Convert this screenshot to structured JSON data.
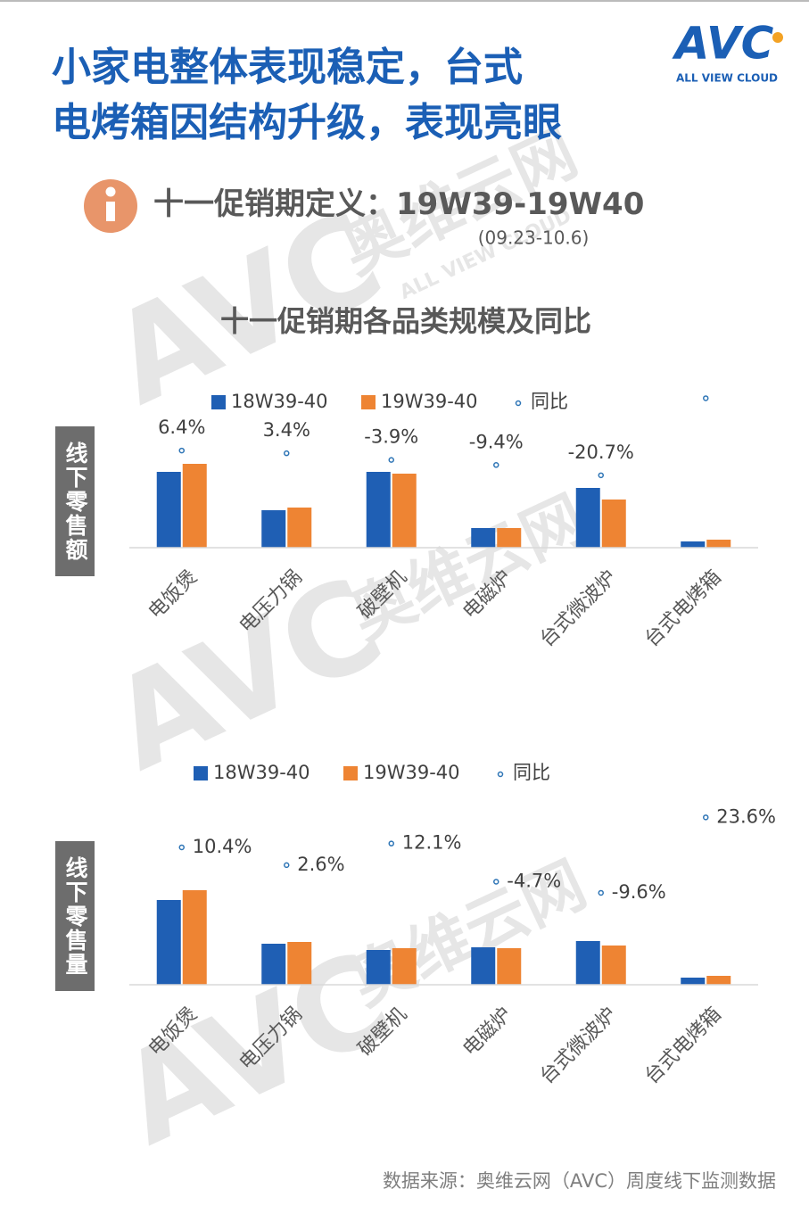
{
  "header": {
    "title_lines": [
      "小家电整体表现稳定，台式",
      "电烤箱因结构升级，表现亮眼"
    ],
    "logo": "AVC",
    "logo_tagline": "ALL VIEW CLOUD"
  },
  "info": {
    "label": "十一促销期定义：",
    "period": "19W39-19W40",
    "dates": "(09.23-10.6)"
  },
  "section_title": "十一促销期各品类规模及同比",
  "watermark": {
    "brand": "AVC",
    "name": "奥维云网",
    "tagline": "ALL VIEW CLOUD"
  },
  "chart_data": [
    {
      "type": "bar",
      "ylabel": "线下零售额",
      "categories": [
        "电饭煲",
        "电压力锅",
        "破壁机",
        "电磁炉",
        "台式微波炉",
        "台式电烤箱"
      ],
      "ylim": [
        0,
        174
      ],
      "y2lim": [
        -100,
        70
      ],
      "label_position": "above",
      "series": [
        {
          "name": "18W39-40",
          "color": "#1f5fb4",
          "values": [
            85,
            42,
            85,
            22,
            67,
            7
          ]
        },
        {
          "name": "19W39-40",
          "color": "#ee8433",
          "values": [
            94,
            45,
            83,
            22,
            54,
            9
          ]
        },
        {
          "name": "同比",
          "type": "scatter",
          "axis": "y2",
          "color": "#2e75b6",
          "values": [
            6.4,
            3.4,
            -3.9,
            -9.4,
            -20.7,
            63.7
          ],
          "value_labels": [
            "6.4%",
            "3.4%",
            "-3.9%",
            "-9.4%",
            "-20.7%",
            null
          ]
        }
      ]
    },
    {
      "type": "bar",
      "ylabel": "线下零售量",
      "categories": [
        "电饭煲",
        "电压力锅",
        "破壁机",
        "电磁炉",
        "台式微波炉",
        "台式电烤箱"
      ],
      "ylim": [
        0,
        204
      ],
      "y2lim": [
        -50,
        30
      ],
      "label_position": "right",
      "series": [
        {
          "name": "18W39-40",
          "color": "#1f5fb4",
          "values": [
            95,
            46,
            39,
            42,
            49,
            8
          ]
        },
        {
          "name": "19W39-40",
          "color": "#ee8433",
          "values": [
            106,
            48,
            41,
            41,
            44,
            10
          ]
        },
        {
          "name": "同比",
          "type": "scatter",
          "axis": "y2",
          "color": "#2e75b6",
          "values": [
            10.4,
            2.6,
            12.1,
            -4.7,
            -9.6,
            23.6
          ],
          "value_labels": [
            "10.4%",
            "2.6%",
            "12.1%",
            "-4.7%",
            "-9.6%",
            "23.6%"
          ]
        }
      ]
    }
  ],
  "source": "数据来源：奥维云网（AVC）周度线下监测数据"
}
